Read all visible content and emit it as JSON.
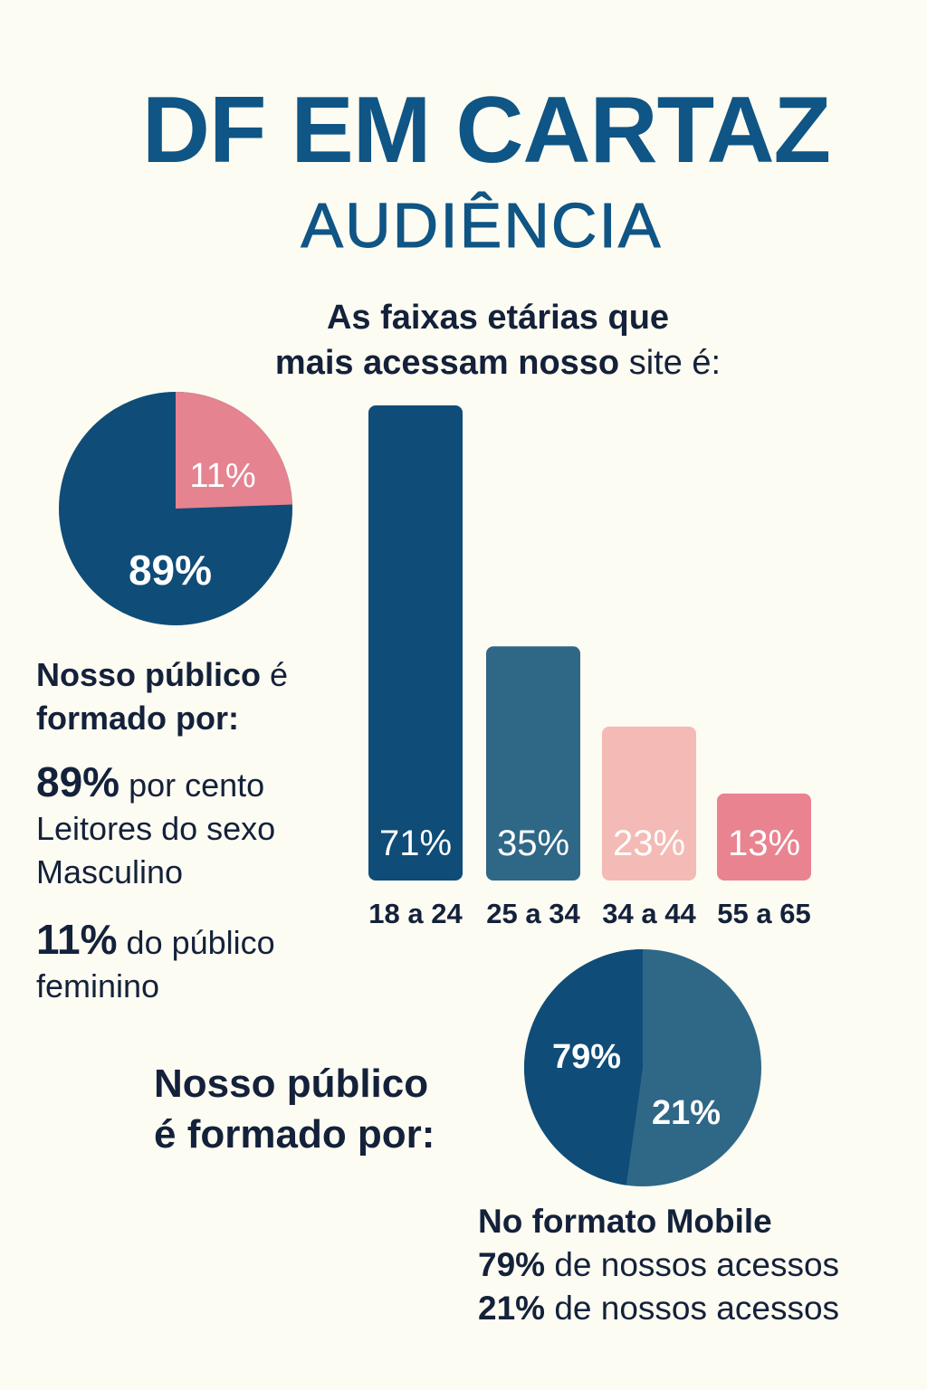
{
  "title": "DF EM CARTAZ",
  "subtitle": "AUDIÊNCIA",
  "age_heading": {
    "bold_line1": "As faixas etárias que",
    "bold_line2": "mais acessam nosso",
    "regular_end": "site é:"
  },
  "gender_section": {
    "heading_bold_1": "Nosso público",
    "heading_regular": "é",
    "heading_bold_2": "formado por:",
    "male_value": "89%",
    "male_text_1": "por cento",
    "male_text_2": "Leitores do sexo",
    "male_text_3": "Masculino",
    "female_value": "11%",
    "female_text_1": "do público",
    "female_text_2": "feminino"
  },
  "device_section": {
    "heading_line1": "Nosso público",
    "heading_line2": "é formado por:",
    "caption_title": "No formato Mobile",
    "line1_value": "79%",
    "line1_text": "de nossos acessos",
    "line2_value": "21%",
    "line2_text": "de nossos acessos"
  },
  "chart_data": [
    {
      "type": "pie",
      "slices": [
        {
          "label": "89%",
          "value": 89,
          "color": "#0f4c78"
        },
        {
          "label": "11%",
          "value": 11,
          "color": "#e58390"
        }
      ]
    },
    {
      "type": "bar",
      "categories": [
        "18 a 24",
        "25 a 34",
        "34 a 44",
        "55 a 65"
      ],
      "values": [
        71,
        35,
        23,
        13
      ],
      "value_labels": [
        "71%",
        "35%",
        "23%",
        "13%"
      ],
      "colors": [
        "#0f4c78",
        "#2f6787",
        "#f4bab5",
        "#e98390"
      ],
      "label_colors": [
        "#ffffff",
        "#ffffff",
        "#ffffff",
        "#ffffff"
      ]
    },
    {
      "type": "pie",
      "slices": [
        {
          "label": "79%",
          "value": 79,
          "color": "#0f4c78"
        },
        {
          "label": "21%",
          "value": 21,
          "color": "#2f6787"
        }
      ]
    }
  ]
}
